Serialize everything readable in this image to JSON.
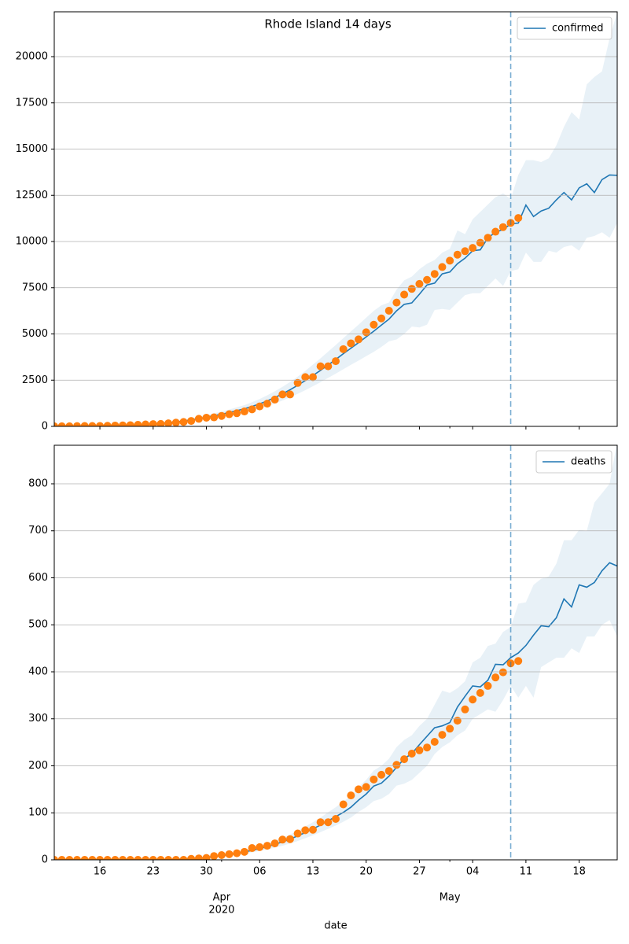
{
  "chart_data": [
    {
      "type": "line",
      "title": "Rhode Island 14 days",
      "x": [
        "2020-03-10",
        "2020-03-11",
        "2020-03-12",
        "2020-03-13",
        "2020-03-14",
        "2020-03-15",
        "2020-03-16",
        "2020-03-17",
        "2020-03-18",
        "2020-03-19",
        "2020-03-20",
        "2020-03-21",
        "2020-03-22",
        "2020-03-23",
        "2020-03-24",
        "2020-03-25",
        "2020-03-26",
        "2020-03-27",
        "2020-03-28",
        "2020-03-29",
        "2020-03-30",
        "2020-03-31",
        "2020-04-01",
        "2020-04-02",
        "2020-04-03",
        "2020-04-04",
        "2020-04-05",
        "2020-04-06",
        "2020-04-07",
        "2020-04-08",
        "2020-04-09",
        "2020-04-10",
        "2020-04-11",
        "2020-04-12",
        "2020-04-13",
        "2020-04-14",
        "2020-04-15",
        "2020-04-16",
        "2020-04-17",
        "2020-04-18",
        "2020-04-19",
        "2020-04-20",
        "2020-04-21",
        "2020-04-22",
        "2020-04-23",
        "2020-04-24",
        "2020-04-25",
        "2020-04-26",
        "2020-04-27",
        "2020-04-28",
        "2020-04-29",
        "2020-04-30",
        "2020-05-01",
        "2020-05-02",
        "2020-05-03",
        "2020-05-04",
        "2020-05-05",
        "2020-05-06",
        "2020-05-07",
        "2020-05-08",
        "2020-05-09",
        "2020-05-10",
        "2020-05-11",
        "2020-05-12",
        "2020-05-13",
        "2020-05-14",
        "2020-05-15",
        "2020-05-16",
        "2020-05-17",
        "2020-05-18",
        "2020-05-19",
        "2020-05-20",
        "2020-05-21",
        "2020-05-22",
        "2020-05-23"
      ],
      "series": [
        {
          "name": "confirmed",
          "color": "#1f77b4",
          "values": [
            2,
            4,
            6,
            10,
            15,
            20,
            27,
            35,
            45,
            58,
            72,
            90,
            110,
            135,
            165,
            200,
            240,
            290,
            350,
            420,
            500,
            580,
            660,
            750,
            850,
            950,
            1080,
            1220,
            1380,
            1560,
            1760,
            1980,
            2220,
            2480,
            2750,
            3030,
            3320,
            3620,
            3930,
            4230,
            4530,
            4840,
            5150,
            5480,
            5800,
            6250,
            6600,
            6680,
            7150,
            7650,
            7750,
            8250,
            8350,
            8800,
            9100,
            9500,
            9550,
            10200,
            10500,
            10650,
            10950,
            11000,
            11970,
            11350,
            11650,
            11800,
            12250,
            12650,
            12250,
            12900,
            13120,
            12650,
            13350,
            13600,
            13580
          ]
        }
      ],
      "observed": {
        "color": "#ff7f0e",
        "values": [
          3,
          5,
          5,
          14,
          20,
          21,
          23,
          33,
          44,
          54,
          66,
          83,
          106,
          124,
          132,
          165,
          203,
          239,
          294,
          408,
          470,
          488,
          566,
          657,
          711,
          806,
          922,
          1082,
          1229,
          1450,
          1727,
          1727,
          2349,
          2665,
          2665,
          3251,
          3251,
          3529,
          4177,
          4491,
          4706,
          5090,
          5500,
          5841,
          6256,
          6699,
          7129,
          7439,
          7708,
          7926,
          8247,
          8621,
          8962,
          9289,
          9477,
          9652,
          9933,
          10205,
          10530,
          10779,
          11007,
          11274,
          null,
          null,
          null,
          null,
          null,
          null,
          null,
          null,
          null,
          null,
          null,
          null,
          null
        ]
      },
      "band": {
        "color": "#1f77b4",
        "lower": [
          1,
          3,
          4,
          8,
          12,
          16,
          22,
          28,
          36,
          46,
          58,
          72,
          88,
          108,
          132,
          160,
          192,
          232,
          280,
          336,
          400,
          464,
          528,
          600,
          680,
          760,
          860,
          970,
          1100,
          1240,
          1400,
          1570,
          1760,
          1960,
          2170,
          2390,
          2620,
          2850,
          3090,
          3330,
          3560,
          3800,
          4030,
          4300,
          4600,
          4700,
          5000,
          5400,
          5350,
          5500,
          6300,
          6350,
          6300,
          6700,
          7100,
          7200,
          7200,
          7600,
          8000,
          7600,
          8400,
          8500,
          9400,
          8900,
          8900,
          9500,
          9400,
          9700,
          9800,
          9500,
          10200,
          10300,
          10500,
          10200,
          11000
        ],
        "upper": [
          3,
          6,
          8,
          13,
          19,
          25,
          33,
          43,
          55,
          71,
          88,
          110,
          134,
          164,
          200,
          242,
          290,
          350,
          422,
          506,
          602,
          700,
          800,
          910,
          1030,
          1150,
          1310,
          1480,
          1680,
          1900,
          2140,
          2400,
          2690,
          3000,
          3340,
          3680,
          4040,
          4400,
          4770,
          5140,
          5500,
          5880,
          6250,
          6550,
          6700,
          7400,
          7900,
          8100,
          8500,
          8800,
          9000,
          9400,
          9600,
          10600,
          10400,
          11200,
          11600,
          12000,
          12400,
          12600,
          12300,
          13600,
          14400,
          14400,
          14300,
          14500,
          15200,
          16200,
          17000,
          16600,
          18500,
          18900,
          19200,
          21000,
          22400
        ]
      },
      "vline": "2020-05-09",
      "xlim": [
        "2020-03-10",
        "2020-05-23"
      ],
      "ylim": [
        0,
        22426
      ],
      "yticks": [
        0,
        2500,
        5000,
        7500,
        10000,
        12500,
        15000,
        17500,
        20000
      ],
      "grid": true,
      "legend": "upper right"
    },
    {
      "type": "line",
      "x": [
        "2020-03-10",
        "2020-03-11",
        "2020-03-12",
        "2020-03-13",
        "2020-03-14",
        "2020-03-15",
        "2020-03-16",
        "2020-03-17",
        "2020-03-18",
        "2020-03-19",
        "2020-03-20",
        "2020-03-21",
        "2020-03-22",
        "2020-03-23",
        "2020-03-24",
        "2020-03-25",
        "2020-03-26",
        "2020-03-27",
        "2020-03-28",
        "2020-03-29",
        "2020-03-30",
        "2020-03-31",
        "2020-04-01",
        "2020-04-02",
        "2020-04-03",
        "2020-04-04",
        "2020-04-05",
        "2020-04-06",
        "2020-04-07",
        "2020-04-08",
        "2020-04-09",
        "2020-04-10",
        "2020-04-11",
        "2020-04-12",
        "2020-04-13",
        "2020-04-14",
        "2020-04-15",
        "2020-04-16",
        "2020-04-17",
        "2020-04-18",
        "2020-04-19",
        "2020-04-20",
        "2020-04-21",
        "2020-04-22",
        "2020-04-23",
        "2020-04-24",
        "2020-04-25",
        "2020-04-26",
        "2020-04-27",
        "2020-04-28",
        "2020-04-29",
        "2020-04-30",
        "2020-05-01",
        "2020-05-02",
        "2020-05-03",
        "2020-05-04",
        "2020-05-05",
        "2020-05-06",
        "2020-05-07",
        "2020-05-08",
        "2020-05-09",
        "2020-05-10",
        "2020-05-11",
        "2020-05-12",
        "2020-05-13",
        "2020-05-14",
        "2020-05-15",
        "2020-05-16",
        "2020-05-17",
        "2020-05-18",
        "2020-05-19",
        "2020-05-20",
        "2020-05-21",
        "2020-05-22",
        "2020-05-23"
      ],
      "series": [
        {
          "name": "deaths",
          "color": "#1f77b4",
          "values": [
            0,
            0,
            0,
            0,
            0,
            0,
            0,
            0,
            0,
            0,
            0,
            0,
            0,
            0,
            0,
            1,
            1,
            2,
            3,
            4,
            5,
            7,
            9,
            11,
            14,
            17,
            20,
            24,
            28,
            33,
            38,
            44,
            51,
            58,
            66,
            74,
            83,
            92,
            101,
            112,
            127,
            140,
            157,
            163,
            178,
            197,
            215,
            226,
            245,
            263,
            281,
            285,
            292,
            325,
            348,
            370,
            368,
            382,
            416,
            415,
            430,
            440,
            456,
            478,
            498,
            496,
            515,
            555,
            538,
            585,
            580,
            590,
            615,
            632,
            625
          ]
        }
      ],
      "observed": {
        "color": "#ff7f0e",
        "values": [
          0,
          0,
          0,
          0,
          0,
          0,
          0,
          0,
          0,
          0,
          0,
          0,
          0,
          0,
          0,
          0,
          0,
          0,
          2,
          3,
          4,
          8,
          10,
          12,
          14,
          17,
          25,
          27,
          30,
          35,
          43,
          44,
          56,
          63,
          64,
          80,
          80,
          87,
          118,
          137,
          150,
          155,
          171,
          181,
          189,
          202,
          214,
          226,
          233,
          239,
          251,
          266,
          279,
          296,
          320,
          341,
          355,
          370,
          388,
          399,
          418,
          423,
          null,
          null,
          null,
          null,
          null,
          null,
          null,
          null,
          null,
          null,
          null,
          null,
          null
        ]
      },
      "band": {
        "color": "#1f77b4",
        "lower": [
          0,
          0,
          0,
          0,
          0,
          0,
          0,
          0,
          0,
          0,
          0,
          0,
          0,
          0,
          0,
          0,
          0,
          1,
          2,
          3,
          4,
          5,
          7,
          9,
          11,
          13,
          16,
          19,
          22,
          26,
          30,
          35,
          40,
          46,
          52,
          59,
          66,
          73,
          81,
          90,
          102,
          112,
          125,
          130,
          140,
          158,
          162,
          170,
          185,
          200,
          225,
          240,
          250,
          265,
          275,
          300,
          310,
          320,
          315,
          340,
          370,
          345,
          370,
          345,
          410,
          420,
          430,
          430,
          450,
          440,
          475,
          475,
          500,
          510,
          475
        ],
        "upper": [
          0,
          0,
          0,
          0,
          0,
          0,
          0,
          0,
          0,
          0,
          0,
          0,
          0,
          0,
          1,
          1,
          2,
          3,
          4,
          5,
          7,
          9,
          11,
          14,
          17,
          21,
          25,
          30,
          35,
          41,
          47,
          54,
          62,
          71,
          80,
          90,
          101,
          112,
          124,
          136,
          155,
          170,
          190,
          200,
          215,
          240,
          255,
          265,
          285,
          300,
          330,
          360,
          355,
          365,
          380,
          420,
          430,
          455,
          460,
          485,
          495,
          545,
          548,
          585,
          598,
          603,
          630,
          680,
          680,
          702,
          700,
          760,
          780,
          800,
          890
        ]
      },
      "vline": "2020-05-09",
      "xlim": [
        "2020-03-10",
        "2020-05-23"
      ],
      "ylim": [
        0,
        882
      ],
      "yticks": [
        0,
        100,
        200,
        300,
        400,
        500,
        600,
        700,
        800
      ],
      "xticks": [
        {
          "value": "2020-03-16",
          "label": "16"
        },
        {
          "value": "2020-03-23",
          "label": "23"
        },
        {
          "value": "2020-03-30",
          "label": "30"
        },
        {
          "value": "2020-04-06",
          "label": "06"
        },
        {
          "value": "2020-04-13",
          "label": "13"
        },
        {
          "value": "2020-04-20",
          "label": "20"
        },
        {
          "value": "2020-04-27",
          "label": "27"
        },
        {
          "value": "2020-05-04",
          "label": "04"
        },
        {
          "value": "2020-05-11",
          "label": "11"
        },
        {
          "value": "2020-05-18",
          "label": "18"
        }
      ],
      "xticks_months": [
        {
          "value": "2020-04-01",
          "label": "Apr",
          "year": "2020"
        },
        {
          "value": "2020-05-01",
          "label": "May"
        }
      ],
      "xlabel": "date",
      "grid": true,
      "legend": "upper right"
    }
  ]
}
